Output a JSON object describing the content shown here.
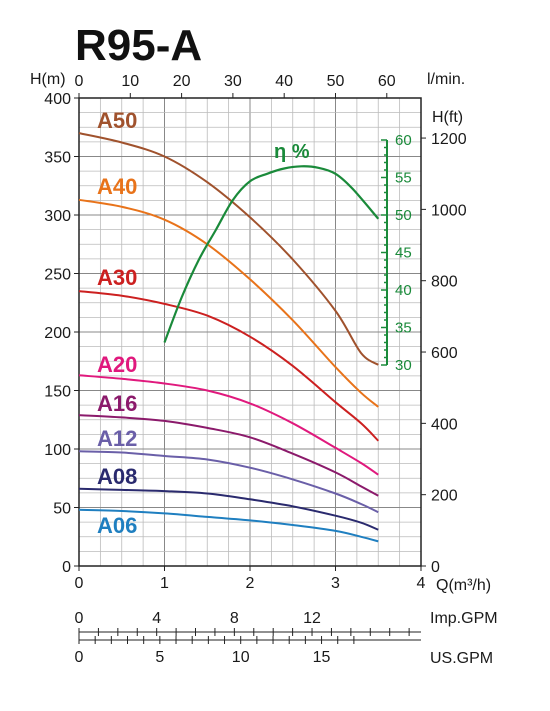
{
  "chart_data": {
    "type": "line",
    "title": "R95-A",
    "x_bottom": {
      "label": "Q(m³/h)",
      "range": [
        0,
        4
      ],
      "ticks": [
        "0",
        "1",
        "2",
        "3",
        "4"
      ]
    },
    "x_top": {
      "label": "l/min.",
      "range": [
        0,
        66.67
      ],
      "ticks": [
        "0",
        "10",
        "20",
        "30",
        "40",
        "50",
        "60"
      ]
    },
    "y_left": {
      "label": "H(m)",
      "range": [
        0,
        400
      ],
      "ticks": [
        "0",
        "50",
        "100",
        "150",
        "200",
        "250",
        "300",
        "350",
        "400"
      ]
    },
    "y_right": {
      "label": "H(ft)",
      "ticks": [
        "0",
        "200",
        "400",
        "600",
        "800",
        "1000",
        "1200"
      ]
    },
    "efficiency_axis": {
      "label": "η %",
      "range": [
        30,
        60
      ],
      "ticks": [
        "30",
        "35",
        "40",
        "45",
        "50",
        "55",
        "60"
      ]
    },
    "imp_gpm": {
      "label": "Imp.GPM",
      "ticks": [
        "0",
        "4",
        "8",
        "12"
      ]
    },
    "us_gpm": {
      "label": "US.GPM",
      "ticks": [
        "0",
        "5",
        "10",
        "15"
      ]
    },
    "grid": true,
    "series": [
      {
        "name": "A50",
        "color": "#a0522d",
        "x": [
          0,
          0.5,
          1,
          1.5,
          2,
          2.5,
          3,
          3.3,
          3.5
        ],
        "y": [
          370,
          362,
          350,
          328,
          298,
          262,
          218,
          182,
          172
        ]
      },
      {
        "name": "A40",
        "color": "#e8731a",
        "x": [
          0,
          0.5,
          1,
          1.5,
          2,
          2.5,
          3,
          3.3,
          3.5
        ],
        "y": [
          313,
          307,
          296,
          275,
          245,
          210,
          170,
          148,
          136
        ]
      },
      {
        "name": "A30",
        "color": "#cc2020",
        "x": [
          0,
          0.5,
          1,
          1.5,
          2,
          2.5,
          3,
          3.3,
          3.5
        ],
        "y": [
          235,
          231,
          224,
          214,
          196,
          171,
          140,
          122,
          107
        ]
      },
      {
        "name": "A20",
        "color": "#e0197d",
        "x": [
          0,
          0.5,
          1,
          1.5,
          2,
          2.5,
          3,
          3.3,
          3.5
        ],
        "y": [
          163,
          160,
          156,
          150,
          139,
          122,
          101,
          88,
          78
        ]
      },
      {
        "name": "A16",
        "color": "#8b1a6b",
        "x": [
          0,
          0.5,
          1,
          1.5,
          2,
          2.5,
          3,
          3.3,
          3.5
        ],
        "y": [
          129,
          127,
          124,
          118,
          110,
          96,
          80,
          68,
          60
        ]
      },
      {
        "name": "A12",
        "color": "#6a5fa8",
        "x": [
          0,
          0.5,
          1,
          1.5,
          2,
          2.5,
          3,
          3.3,
          3.5
        ],
        "y": [
          98,
          97,
          94,
          91,
          84,
          74,
          62,
          53,
          46
        ]
      },
      {
        "name": "A08",
        "color": "#2a2a6e",
        "x": [
          0,
          0.5,
          1,
          1.5,
          2,
          2.5,
          3,
          3.3,
          3.5
        ],
        "y": [
          66,
          65,
          64,
          62,
          57,
          51,
          43,
          37,
          31
        ]
      },
      {
        "name": "A06",
        "color": "#1f7fc0",
        "x": [
          0,
          0.5,
          1,
          1.5,
          2,
          2.5,
          3,
          3.3,
          3.5
        ],
        "y": [
          48,
          47,
          45,
          42,
          39,
          35,
          30,
          25,
          21
        ]
      }
    ],
    "efficiency": {
      "name": "η%",
      "color": "#1a8a3a",
      "x": [
        1.0,
        1.2,
        1.4,
        1.6,
        1.8,
        2.0,
        2.2,
        2.4,
        2.6,
        2.8,
        3.0,
        3.2,
        3.5
      ],
      "y": [
        33,
        39,
        44,
        48,
        52,
        54.5,
        55.5,
        56.2,
        56.5,
        56.3,
        55.5,
        53.5,
        49.5
      ]
    }
  }
}
